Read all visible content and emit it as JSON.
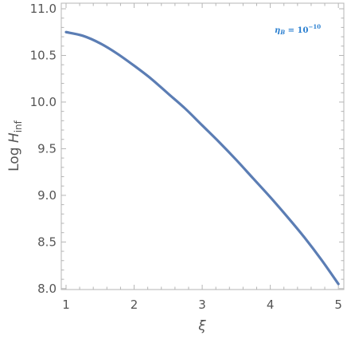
{
  "chart_data": {
    "type": "line",
    "title": "",
    "xlabel": "ξ",
    "ylabel_prefix": "Log ",
    "ylabel_symbol": "H",
    "ylabel_subscript": "inf",
    "xlim": [
      0.93,
      5.08
    ],
    "ylim": [
      7.99,
      11.06
    ],
    "xticks": [
      1,
      2,
      3,
      4,
      5
    ],
    "yticks": [
      8.0,
      8.5,
      9.0,
      9.5,
      10.0,
      10.5,
      11.0
    ],
    "xtick_labels": [
      "1",
      "2",
      "3",
      "4",
      "5"
    ],
    "ytick_labels": [
      "8.0",
      "8.5",
      "9.0",
      "9.5",
      "10.0",
      "10.5",
      "11.0"
    ],
    "grid": false,
    "series": [
      {
        "color": "#5b7db4",
        "x": [
          1.0,
          1.25,
          1.5,
          1.75,
          2.0,
          2.25,
          2.5,
          2.75,
          3.0,
          3.25,
          3.5,
          3.75,
          4.0,
          4.25,
          4.5,
          4.75,
          5.0
        ],
        "y": [
          10.75,
          10.71,
          10.63,
          10.52,
          10.39,
          10.25,
          10.09,
          9.93,
          9.75,
          9.57,
          9.38,
          9.18,
          8.98,
          8.77,
          8.55,
          8.31,
          8.05
        ]
      }
    ],
    "annotation": {
      "symbol": "η",
      "subscript": "B",
      "equals": " = ",
      "base": "10",
      "exponent": "−10"
    }
  }
}
